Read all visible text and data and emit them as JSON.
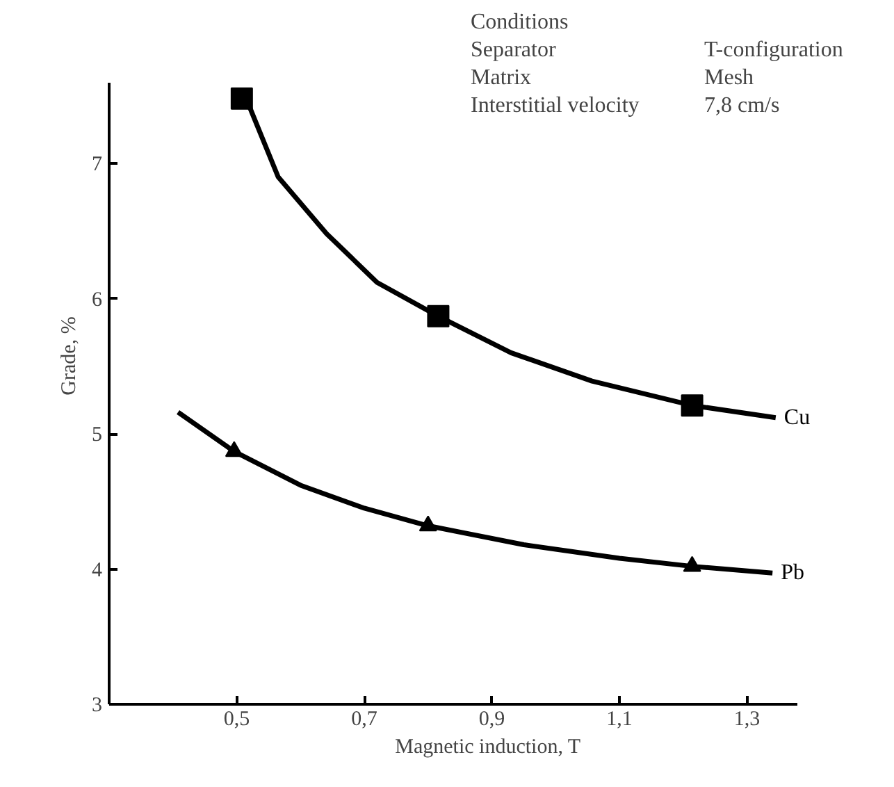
{
  "chart_data": {
    "type": "line",
    "xlabel": "Magnetic induction, T",
    "ylabel": "Grade, %",
    "xlim": [
      0.3,
      1.38
    ],
    "ylim": [
      3,
      7.6
    ],
    "xticks": [
      {
        "value": 0.5,
        "label": "0,5"
      },
      {
        "value": 0.7,
        "label": "0,7"
      },
      {
        "value": 0.9,
        "label": "0,9"
      },
      {
        "value": 1.1,
        "label": "1,1"
      },
      {
        "value": 1.3,
        "label": "1,3"
      }
    ],
    "yticks": [
      3,
      4,
      5,
      6,
      7
    ],
    "grid": false,
    "legend": false,
    "series": [
      {
        "name": "Cu",
        "color": "#000000",
        "type": "line",
        "marker": "none",
        "x": [
          0.52,
          0.565,
          0.641,
          0.72,
          0.816,
          0.93,
          1.057,
          1.214,
          1.345
        ],
        "values": [
          7.42,
          6.9,
          6.48,
          6.12,
          5.87,
          5.6,
          5.39,
          5.21,
          5.12
        ]
      },
      {
        "name": "Pb",
        "color": "#000000",
        "type": "line",
        "marker": "none",
        "x": [
          0.408,
          0.496,
          0.6,
          0.7,
          0.8,
          0.95,
          1.1,
          1.214,
          1.34
        ],
        "values": [
          5.16,
          4.87,
          4.62,
          4.45,
          4.32,
          4.18,
          4.08,
          4.02,
          3.97
        ]
      },
      {
        "color": "#000000",
        "type": "scatter",
        "marker": "square",
        "x": [
          0.508,
          0.816,
          1.214
        ],
        "values": [
          7.48,
          5.87,
          5.21
        ]
      },
      {
        "color": "#000000",
        "type": "scatter",
        "marker": "triangle",
        "x": [
          0.496,
          0.8,
          1.214
        ],
        "values": [
          4.87,
          4.32,
          4.02
        ]
      }
    ],
    "annotations": [
      "Conditions",
      "Separator",
      "T-configuration",
      "Matrix",
      "Mesh",
      "Interstitial velocity",
      "7,8 cm/s"
    ]
  }
}
